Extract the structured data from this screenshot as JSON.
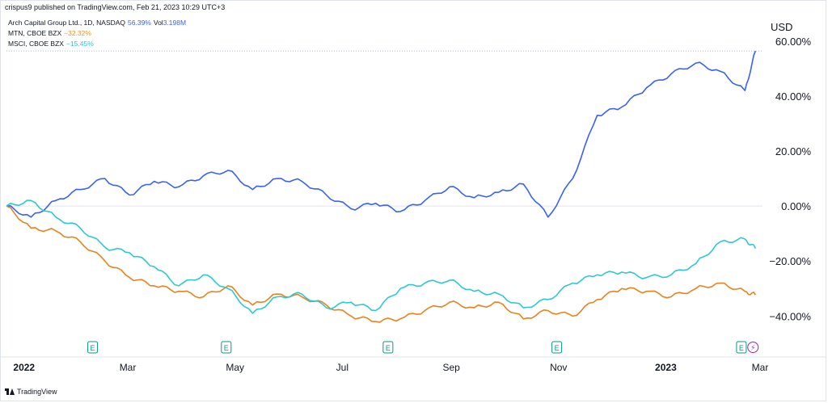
{
  "header": {
    "publisher": "crispus9 published on TradingView.com, Feb 21, 2023 10:29 UTC+3"
  },
  "legend": [
    {
      "name": "Arch Capital Group Ltd., 1D, NASDAQ",
      "value": "56.39%",
      "extra": "Vol",
      "extra_value": "3.198M",
      "color": "#3861f6"
    },
    {
      "name": "MTN, CBOE BZX",
      "value": "−32.32%",
      "extra": "",
      "extra_value": "",
      "color": "#f7931a"
    },
    {
      "name": "MSCI, CBOE BZX",
      "value": "−15.45%",
      "extra": "",
      "extra_value": "",
      "color": "#26c6da"
    }
  ],
  "footer": {
    "brand": "TradingView"
  },
  "colors": {
    "acgl": "#3861f6",
    "mtn": "#e8821e",
    "msci": "#2ec8d2",
    "grid": "#e0e3eb",
    "earnings_badge": "#089981",
    "dividend_badge": "#9c27b0"
  },
  "chart_data": {
    "type": "line",
    "title": "",
    "ylabel": "USD",
    "y_unit": "%",
    "ylim": [
      -49,
      62
    ],
    "x_ticks": [
      "2022",
      "Mar",
      "May",
      "Jul",
      "Sep",
      "Nov",
      "2023",
      "Mar"
    ],
    "bold_ticks": [
      "2022",
      "2023"
    ],
    "y_ticks": [
      "60.00%",
      "40.00%",
      "20.00%",
      "0.00%",
      "−20.00%",
      "−40.00%"
    ],
    "y_tick_values": [
      60,
      40,
      20,
      0,
      -20,
      -40
    ],
    "dates": [
      "2021-12-22",
      "2022-01-05",
      "2022-01-19",
      "2022-02-02",
      "2022-02-16",
      "2022-03-02",
      "2022-03-16",
      "2022-03-30",
      "2022-04-13",
      "2022-04-27",
      "2022-05-11",
      "2022-05-25",
      "2022-06-08",
      "2022-06-22",
      "2022-07-06",
      "2022-07-20",
      "2022-08-03",
      "2022-08-17",
      "2022-08-31",
      "2022-09-14",
      "2022-09-28",
      "2022-10-12",
      "2022-10-26",
      "2022-11-09",
      "2022-11-23",
      "2022-12-07",
      "2022-12-21",
      "2023-01-04",
      "2023-01-18",
      "2023-02-01",
      "2023-02-15",
      "2023-02-21"
    ],
    "series": [
      {
        "name": "Arch Capital Group Ltd., 1D, NASDAQ",
        "values": [
          0,
          -4,
          2,
          6,
          10,
          4,
          9,
          7,
          11,
          13,
          6,
          10,
          9,
          4,
          -1,
          1,
          -2,
          2,
          7,
          3,
          5,
          8,
          -4,
          10,
          33,
          36,
          43,
          48,
          52,
          49,
          42,
          56.39
        ]
      },
      {
        "name": "MTN, CBOE BZX",
        "values": [
          0,
          -8,
          -9,
          -13,
          -20,
          -26,
          -29,
          -31,
          -33,
          -29,
          -36,
          -32,
          -33,
          -36,
          -40,
          -42,
          -41,
          -38,
          -35,
          -37,
          -35,
          -41,
          -38,
          -40,
          -34,
          -30,
          -31,
          -33,
          -30,
          -28,
          -31,
          -32.32
        ]
      },
      {
        "name": "MSCI, CBOE BZX",
        "values": [
          0,
          2,
          -4,
          -8,
          -15,
          -17,
          -22,
          -29,
          -25,
          -30,
          -39,
          -33,
          -32,
          -37,
          -35,
          -38,
          -30,
          -28,
          -27,
          -31,
          -32,
          -37,
          -34,
          -28,
          -25,
          -24,
          -26,
          -25,
          -21,
          -13,
          -12,
          -15.45
        ]
      }
    ],
    "events": {
      "earnings_dates": [
        "2022-02-09",
        "2022-04-26",
        "2022-07-27",
        "2022-10-31",
        "2023-02-13"
      ],
      "dividend_dates": [
        "2023-02-15"
      ],
      "earnings_symbol": "E",
      "dividend_symbol": "⚡"
    },
    "grid": "zero-line-only",
    "legend_position": "top-left"
  }
}
